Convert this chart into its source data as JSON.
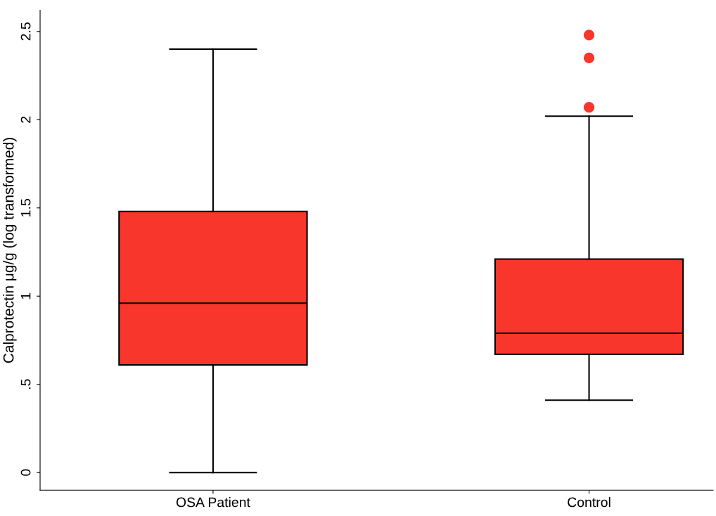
{
  "chart_data": {
    "type": "box",
    "ylabel": "Calprotectin μg/g (log transformed)",
    "categories": [
      "OSA Patient",
      "Control"
    ],
    "color": "#f8362b",
    "boxes": [
      {
        "low": 0,
        "q1": 0.61,
        "median": 0.96,
        "q3": 1.48,
        "high": 2.4
      },
      {
        "low": 0.41,
        "q1": 0.67,
        "median": 0.79,
        "q3": 1.21,
        "high": 2.02,
        "outliers": [
          2.07,
          2.35,
          2.48
        ]
      }
    ],
    "ylim": [
      -0.1,
      2.62
    ],
    "yticks": [
      0,
      {
        "value": 0.5,
        "label": ".5"
      },
      1,
      1.5,
      2,
      2.5
    ],
    "grid": false
  }
}
